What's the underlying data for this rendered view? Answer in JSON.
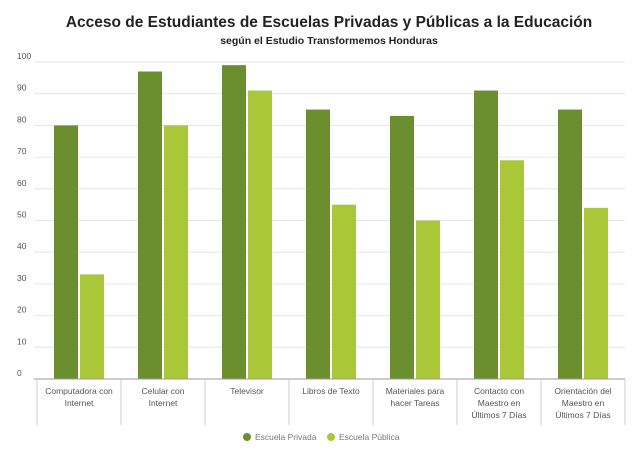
{
  "chart_data": {
    "type": "bar",
    "title": "Acceso de Estudiantes de Escuelas Privadas y Públicas a la Educación",
    "subtitle": "según el Estudio Transformemos Honduras",
    "categories": [
      [
        "Computadora con",
        "Internet"
      ],
      [
        "Celular con",
        "Internet"
      ],
      [
        "Televisor"
      ],
      [
        "Libros de Texto"
      ],
      [
        "Materiales para",
        "hacer Tareas"
      ],
      [
        "Contacto con",
        "Maestro en",
        "Últimos 7 Días"
      ],
      [
        "Orientación del",
        "Maestro en",
        "Últimos 7 Días"
      ]
    ],
    "series": [
      {
        "name": "Escuela Privada",
        "color": "#6b8f2e",
        "values": [
          80,
          97,
          99,
          85,
          83,
          91,
          85
        ]
      },
      {
        "name": "Escuela Pública",
        "color": "#a9c738",
        "values": [
          33,
          80,
          91,
          55,
          50,
          69,
          54
        ]
      }
    ],
    "ylim": [
      0,
      100
    ],
    "yticks": [
      0,
      10,
      20,
      30,
      40,
      50,
      60,
      70,
      80,
      90,
      100
    ],
    "grid": true,
    "legend": "bottom-center"
  }
}
